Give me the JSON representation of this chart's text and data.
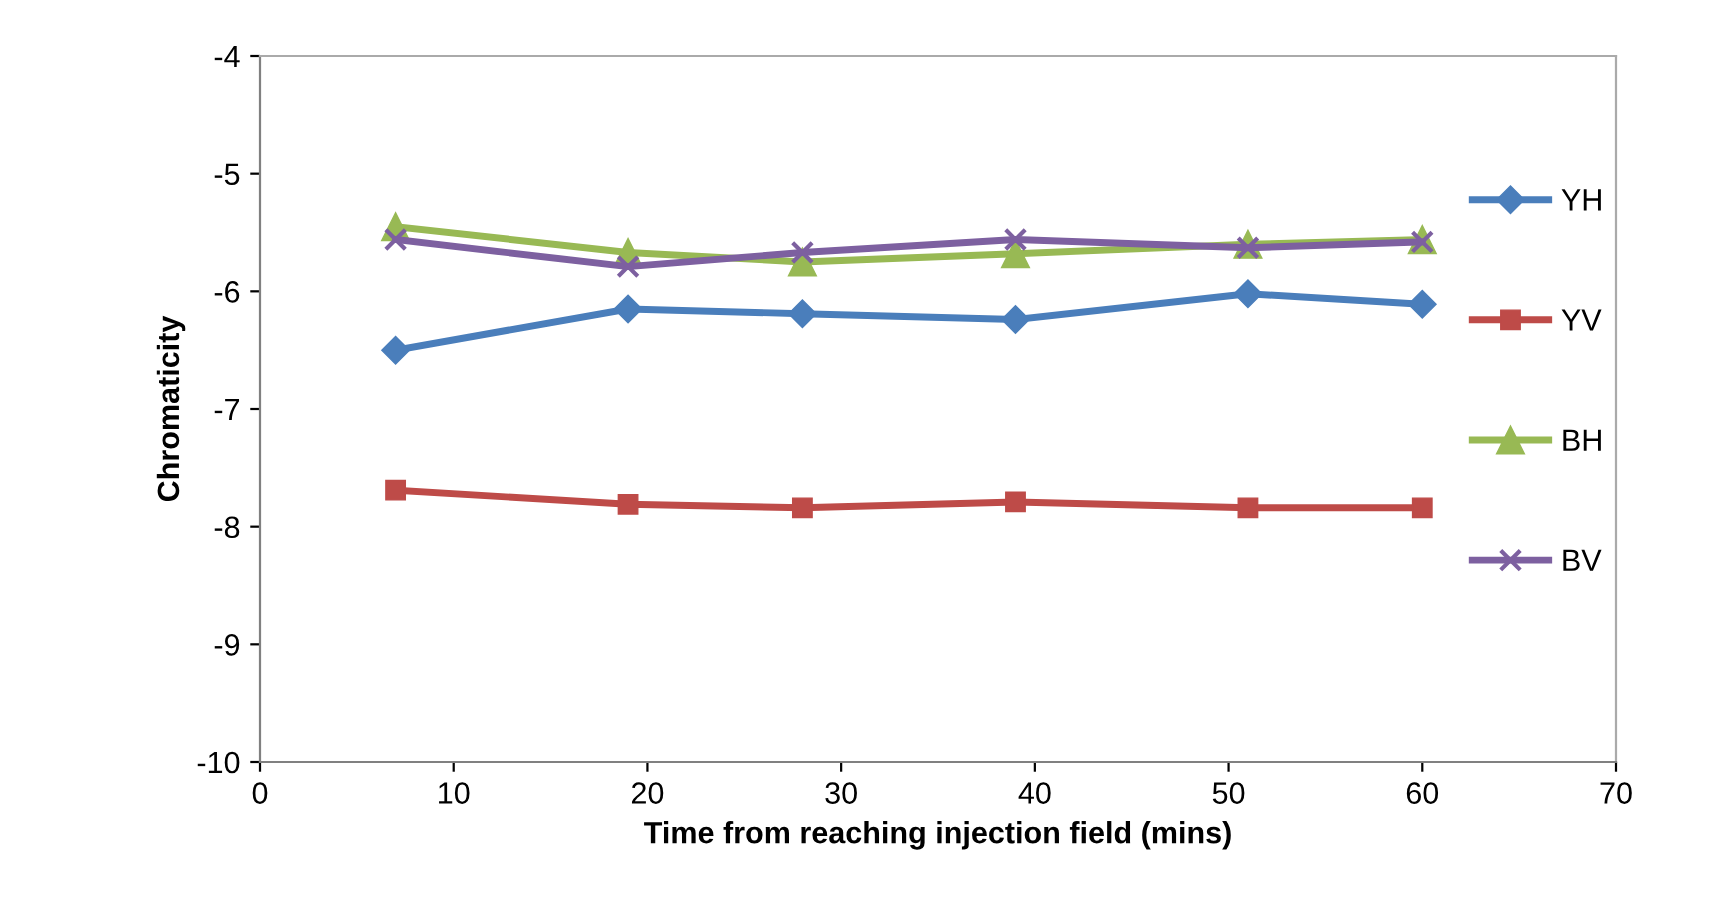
{
  "chart_data": {
    "type": "line",
    "xlabel": "Time from reaching injection field (mins)",
    "ylabel": "Chromaticity",
    "x": [
      7,
      19,
      28,
      39,
      51,
      60
    ],
    "xlim": [
      0,
      70
    ],
    "xticks": [
      0,
      10,
      20,
      30,
      40,
      50,
      60,
      70
    ],
    "ylim": [
      -10,
      -4
    ],
    "yticks": [
      -10,
      -9,
      -8,
      -7,
      -6,
      -5,
      -4
    ],
    "grid": false,
    "legend": "right",
    "line_style": "solid",
    "series": [
      {
        "name": "YH",
        "color": "#4a7ebb",
        "marker": "diamond",
        "values": [
          -6.5,
          -6.15,
          -6.19,
          -6.24,
          -6.02,
          -6.11
        ]
      },
      {
        "name": "YV",
        "color": "#be4b48",
        "marker": "square",
        "values": [
          -7.69,
          -7.81,
          -7.84,
          -7.79,
          -7.84,
          -7.84
        ]
      },
      {
        "name": "BH",
        "color": "#98b954",
        "marker": "triangle",
        "values": [
          -5.45,
          -5.67,
          -5.75,
          -5.68,
          -5.6,
          -5.56
        ]
      },
      {
        "name": "BV",
        "color": "#7d60a0",
        "marker": "cross",
        "values": [
          -5.56,
          -5.79,
          -5.67,
          -5.56,
          -5.63,
          -5.58
        ]
      }
    ]
  }
}
